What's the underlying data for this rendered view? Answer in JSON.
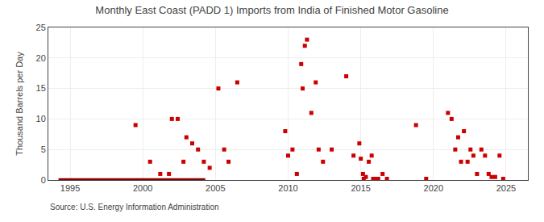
{
  "chart_data": {
    "type": "scatter",
    "title": "Monthly East Coast (PADD 1) Imports from India of Finished Motor Gasoline",
    "ylabel": "Thousand Barrels per Day",
    "annotations": [
      "Source: U.S. Energy Information Administration"
    ],
    "xlim": [
      1993.5,
      2026.5
    ],
    "ylim": [
      0,
      25
    ],
    "xticks": [
      1995,
      2000,
      2005,
      2010,
      2015,
      2020,
      2025
    ],
    "yticks": [
      0,
      5,
      10,
      15,
      20,
      25
    ],
    "grid": true,
    "series": [
      {
        "type": "line",
        "color": "#8b0000",
        "line_style": "solid",
        "x": [
          1994.2,
          2004.3
        ],
        "values": [
          0,
          0
        ]
      },
      {
        "type": "scatter",
        "color": "#cc0000",
        "marker": "square",
        "x": [
          1999.5,
          2000.5,
          2001.2,
          2001.8,
          2002.0,
          2002.4,
          2002.8,
          2003.0,
          2003.4,
          2003.8,
          2004.2,
          2004.6,
          2005.2,
          2005.6,
          2005.9,
          2006.5,
          2009.8,
          2010.0,
          2010.3,
          2010.6,
          2010.9,
          2011.0,
          2011.15,
          2011.3,
          2011.6,
          2011.9,
          2012.1,
          2012.4,
          2013.0,
          2014.0,
          2014.5,
          2014.9,
          2015.0,
          2015.15,
          2015.2,
          2015.35,
          2015.55,
          2015.75,
          2015.85,
          2016.0,
          2016.2,
          2016.5,
          2016.8,
          2018.8,
          2019.5,
          2021.0,
          2021.25,
          2021.5,
          2021.7,
          2021.9,
          2022.1,
          2022.35,
          2022.55,
          2022.75,
          2023.0,
          2023.3,
          2023.55,
          2023.8,
          2024.0,
          2024.25,
          2024.55,
          2024.8
        ],
        "values": [
          9.0,
          3.0,
          1.0,
          1.0,
          10.0,
          10.0,
          3.0,
          7.0,
          6.0,
          5.0,
          3.0,
          2.0,
          15.0,
          5.0,
          3.0,
          16.0,
          8.0,
          4.0,
          5.0,
          1.0,
          19.0,
          15.0,
          22.0,
          23.0,
          11.0,
          16.0,
          5.0,
          3.0,
          5.0,
          17.0,
          4.0,
          6.0,
          3.5,
          1.0,
          0.2,
          0.5,
          3.0,
          4.0,
          0.2,
          0.2,
          0.2,
          1.0,
          0.2,
          9.0,
          0.2,
          11.0,
          10.0,
          5.0,
          7.0,
          3.0,
          8.0,
          3.0,
          5.0,
          4.0,
          1.0,
          5.0,
          4.0,
          1.0,
          0.5,
          0.5,
          4.0,
          0.2
        ]
      }
    ]
  }
}
